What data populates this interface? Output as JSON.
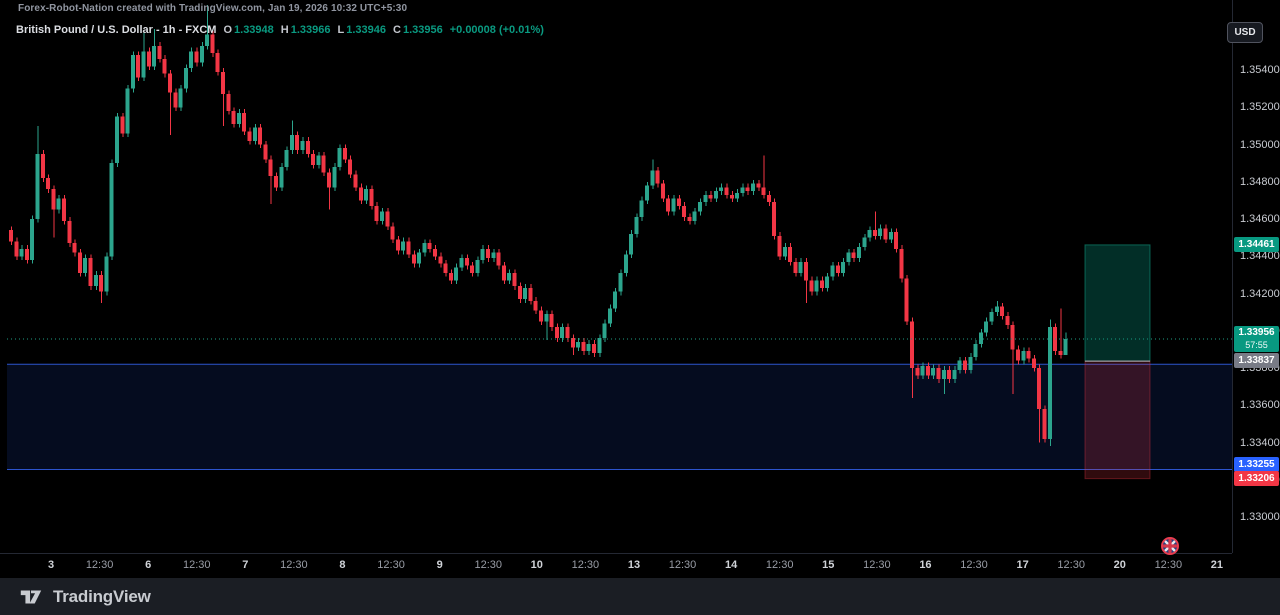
{
  "topbar": {
    "attribution": "Forex-Robot-Nation created with TradingView.com, Jan 19, 2026 10:32 UTC+5:30"
  },
  "currency_button": {
    "label": "USD"
  },
  "legend": {
    "title": "British Pound / U.S. Dollar - 1h - FXCM",
    "o_label": "O",
    "o_value": "1.33948",
    "h_label": "H",
    "h_value": "1.33966",
    "l_label": "L",
    "l_value": "1.33946",
    "c_label": "C",
    "c_value": "1.33956",
    "change": "+0.00008 (+0.01%)"
  },
  "footer": {
    "brand": "TradingView"
  },
  "colors": {
    "up": "#2ca58d",
    "down": "#f23645",
    "current_badge": "#089981",
    "target_badge": "#089981",
    "entry_badge": "#787b86",
    "zone_badge": "#2962ff",
    "stop_badge": "#f23645",
    "zone_fill": "rgba(41,98,255,0.12)",
    "zone_border": "#2d54cc",
    "profit_fill": "rgba(8,153,129,0.30)",
    "loss_fill": "rgba(242,54,69,0.20)",
    "price_line": "#1f9e85"
  },
  "chart_data": {
    "type": "candlestick",
    "symbol": "British Pound / U.S. Dollar",
    "exchange": "FXCM",
    "interval": "1h",
    "price_range": [
      1.3281,
      1.3578
    ],
    "grid": "off",
    "price_ticks": [
      1.354,
      1.352,
      1.35,
      1.348,
      1.346,
      1.344,
      1.342,
      1.34,
      1.338,
      1.336,
      1.334,
      1.332,
      1.33
    ],
    "time_labels": [
      "3",
      "12:30",
      "6",
      "12:30",
      "7",
      "12:30",
      "8",
      "12:30",
      "9",
      "12:30",
      "10",
      "12:30",
      "13",
      "12:30",
      "14",
      "12:30",
      "15",
      "12:30",
      "16",
      "12:30",
      "17",
      "12:30",
      "20",
      "12:30",
      "21"
    ],
    "levels": {
      "current_price": 1.33956,
      "countdown": "57:55",
      "target_price": 1.34461,
      "entry_price": 1.33837,
      "stop_price": 1.33206,
      "zone_top_price": 1.3382,
      "zone_bottom_price": 1.33255
    },
    "series": {
      "first_open": 1.3454,
      "default_wick": 0.0002,
      "closes": [
        1.3448,
        1.344,
        1.3444,
        1.3438,
        1.346,
        1.3495,
        1.3482,
        1.3476,
        1.3465,
        1.3471,
        1.3459,
        1.3447,
        1.3442,
        1.3431,
        1.3439,
        1.3424,
        1.343,
        1.3421,
        1.344,
        1.349,
        1.3515,
        1.3506,
        1.353,
        1.3548,
        1.3536,
        1.355,
        1.3542,
        1.3553,
        1.3546,
        1.3538,
        1.3528,
        1.352,
        1.353,
        1.3541,
        1.355,
        1.3544,
        1.3553,
        1.3559,
        1.3549,
        1.3539,
        1.3527,
        1.3518,
        1.3511,
        1.3517,
        1.3507,
        1.3502,
        1.3509,
        1.35,
        1.3492,
        1.3483,
        1.3477,
        1.3488,
        1.3497,
        1.3505,
        1.3497,
        1.3502,
        1.3495,
        1.3489,
        1.3494,
        1.3485,
        1.3477,
        1.3488,
        1.3498,
        1.3492,
        1.3484,
        1.3477,
        1.347,
        1.3476,
        1.3467,
        1.3459,
        1.3464,
        1.3456,
        1.3449,
        1.3443,
        1.3448,
        1.3441,
        1.3436,
        1.3442,
        1.3447,
        1.3444,
        1.344,
        1.3436,
        1.3431,
        1.3427,
        1.3434,
        1.3439,
        1.3435,
        1.3431,
        1.3438,
        1.3444,
        1.3439,
        1.3442,
        1.3435,
        1.3427,
        1.3431,
        1.3424,
        1.3417,
        1.3423,
        1.3416,
        1.3411,
        1.3405,
        1.3409,
        1.3402,
        1.3396,
        1.3402,
        1.3396,
        1.3391,
        1.3394,
        1.3389,
        1.3393,
        1.3388,
        1.3396,
        1.3404,
        1.3412,
        1.3421,
        1.3431,
        1.3441,
        1.3452,
        1.3461,
        1.347,
        1.3478,
        1.3486,
        1.3479,
        1.3471,
        1.3464,
        1.3471,
        1.3467,
        1.3461,
        1.3459,
        1.3464,
        1.3469,
        1.3473,
        1.3471,
        1.3475,
        1.3477,
        1.3473,
        1.3471,
        1.3474,
        1.3477,
        1.3475,
        1.3479,
        1.3477,
        1.3473,
        1.3469,
        1.3451,
        1.344,
        1.3445,
        1.3437,
        1.3431,
        1.3437,
        1.3427,
        1.3421,
        1.3427,
        1.3423,
        1.3429,
        1.3435,
        1.3431,
        1.3437,
        1.3442,
        1.3439,
        1.3445,
        1.345,
        1.3454,
        1.3451,
        1.3455,
        1.3449,
        1.3453,
        1.3444,
        1.3428,
        1.3405,
        1.338,
        1.3376,
        1.3381,
        1.3376,
        1.338,
        1.3374,
        1.3379,
        1.3374,
        1.3379,
        1.3384,
        1.3379,
        1.3386,
        1.3393,
        1.3399,
        1.3405,
        1.341,
        1.3413,
        1.3408,
        1.3403,
        1.339,
        1.3384,
        1.3389,
        1.3385,
        1.338,
        1.3358,
        1.3342,
        1.3402,
        1.3389,
        1.3387,
        1.33956
      ],
      "special_highs": {
        "5": 1.351,
        "25": 1.356,
        "27": 1.3562,
        "37": 1.3575,
        "53": 1.3513,
        "121": 1.3492,
        "142": 1.3494,
        "163": 1.3464,
        "186": 1.3416,
        "196": 1.3406,
        "198": 1.3412,
        "199": 1.3399
      },
      "special_lows": {
        "8": 1.345,
        "17": 1.3415,
        "30": 1.3505,
        "40": 1.351,
        "49": 1.3468,
        "60": 1.3465,
        "101": 1.3395,
        "106": 1.3387,
        "110": 1.3386,
        "150": 1.3415,
        "170": 1.3364,
        "176": 1.3366,
        "189": 1.3366,
        "194": 1.334,
        "196": 1.3338,
        "199": 1.3388
      }
    }
  }
}
